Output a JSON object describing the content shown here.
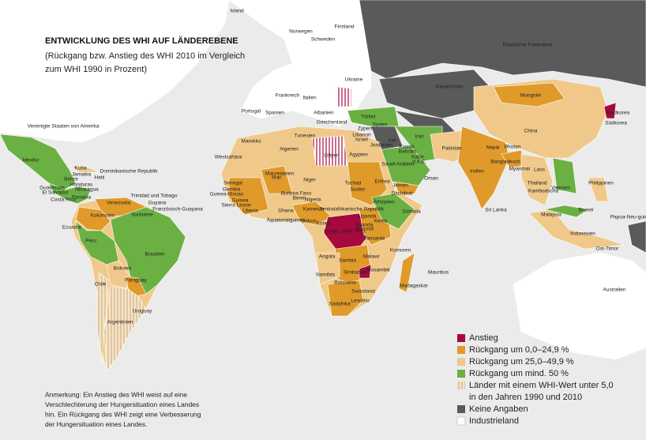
{
  "header": {
    "title": "ENTWICKLUNG DES WHI AUF LÄNDEREBENE",
    "subtitle": [
      "(Rückgang bzw. Anstieg des WHI 2010 im Vergleich",
      "zum WHI 1990 in Prozent)"
    ]
  },
  "legend": [
    {
      "label": [
        "Anstieg"
      ]
    },
    {
      "label": [
        "Rückgang um 0,0–24,9 %"
      ]
    },
    {
      "label": [
        "Rückgang um 25,0–49,9 %"
      ]
    },
    {
      "label": [
        "Rückgang um mind. 50 %"
      ]
    },
    {
      "label": [
        "Länder mit einem WHI-Wert unter 5,0",
        "in den Jahren 1990 und 2010"
      ]
    },
    {
      "label": [
        "Keine Angaben"
      ]
    },
    {
      "label": [
        "Industrieland"
      ]
    }
  ],
  "note": [
    "Anmerkung: Ein Anstieg des WHI weist auf eine",
    "Verschlechterung der Hungersituation eines Landes",
    "hin. Ein Rückgang des WHI zeigt eine Verbesserung",
    "der Hungersituation eines Landes."
  ],
  "labels": [
    "Island",
    "Finnland",
    "Norwegen",
    "Schweden",
    "Russische Föderation",
    "Kasachstan",
    "Mongolei",
    "China",
    "Nordkorea",
    "Südkorea",
    "Frankreich",
    "Portugal",
    "Spanien",
    "Italien",
    "Albanien",
    "Griechenland",
    "Türkei",
    "Zypern",
    "Libanon",
    "Israel",
    "Syrien",
    "Irak",
    "Iran",
    "Jordanien",
    "Kuwait",
    "Bahrain",
    "Katar",
    "V.A.E.",
    "Oman",
    "Saudi-Arabien",
    "Jemen",
    "Pakistan",
    "Indien",
    "Nepal",
    "Bhutan",
    "Bangladesch",
    "Myanmar",
    "Laos",
    "Thailand",
    "Kambodscha",
    "Vietnam",
    "Philippinen",
    "Malaysia",
    "Brunei",
    "Indonesien",
    "Ost-Timor",
    "Papua-Neu-guinea",
    "Australien",
    "Sri Lanka",
    "Marokko",
    "Westsahara",
    "Algerien",
    "Tunesien",
    "Libyen",
    "Ägypten",
    "Mauretanien",
    "Mali",
    "Niger",
    "Tschad",
    "Sudan",
    "Eritrea",
    "Dschibuti",
    "Äthiopien",
    "Somalia",
    "Senegal",
    "Gambia",
    "Guinea-Bissau",
    "Guinea",
    "Sierra Leone",
    "Liberia",
    "Burkina Faso",
    "Ghana",
    "Benin",
    "Nigeria",
    "Kamerun",
    "Zentralafrikanische Republik",
    "Äquatorialguinea",
    "Gabun",
    "Kongo",
    "Kongo, Dem. Rep.",
    "Uganda",
    "Kenia",
    "Ruanda",
    "Burundi",
    "Tansania",
    "Angola",
    "Sambia",
    "Malawi",
    "Komoren",
    "Mosambik",
    "Madagaskar",
    "Mauritius",
    "Namibia",
    "Botsuana",
    "Simbabwe",
    "Swasiland",
    "Lesotho",
    "Südafrika",
    "Vereinigte Staaten von Amerika",
    "Mexiko",
    "Kuba",
    "Jamaika",
    "Haiti",
    "Dominikanische Republik",
    "Belize",
    "Guatemala",
    "Honduras",
    "El Salvador",
    "Nicaragua",
    "Panama",
    "Costa Rica",
    "Trinidad und Tobago",
    "Guyana",
    "Suriname",
    "Französisch-Guayana",
    "Venezuela",
    "Kolumbien",
    "Ecuador",
    "Peru",
    "Brasilien",
    "Bolivien",
    "Paraguay",
    "Chile",
    "Uruguay",
    "Argentinien",
    "Ukraine"
  ]
}
